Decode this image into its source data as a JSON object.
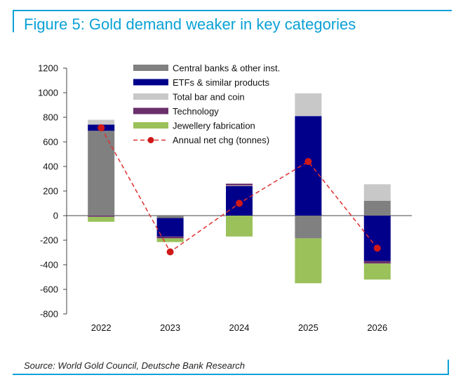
{
  "title": "Figure 5: Gold demand weaker in key categories",
  "source": "Source: World Gold Council, Deutsche Bank Research",
  "chart_data": {
    "type": "bar",
    "stacked": true,
    "categories": [
      "2022",
      "2023",
      "2024",
      "2025",
      "2026"
    ],
    "ylim": [
      -800,
      1200
    ],
    "yticks": [
      1200,
      1000,
      800,
      600,
      400,
      200,
      0,
      -200,
      -400,
      -600,
      -800
    ],
    "legend_position": "top-center",
    "grid": false,
    "series": [
      {
        "name": "Central banks & other inst.",
        "color": "#808080",
        "values": [
          690,
          -20,
          0,
          -185,
          120
        ]
      },
      {
        "name": "ETFs & similar products",
        "color": "#00008b",
        "values": [
          50,
          -150,
          240,
          810,
          -370
        ]
      },
      {
        "name": "Total bar and coin",
        "color": "#c8c8c8",
        "values": [
          40,
          0,
          5,
          185,
          135
        ]
      },
      {
        "name": "Technology",
        "color": "#6b2f6b",
        "values": [
          -10,
          -15,
          15,
          0,
          -20
        ]
      },
      {
        "name": "Jewellery fabrication",
        "color": "#9bc15a",
        "values": [
          -40,
          -30,
          -170,
          -365,
          -130
        ]
      }
    ],
    "line_series": {
      "name": "Annual net chg (tonnes)",
      "color": "#e03030",
      "values": [
        715,
        -295,
        100,
        440,
        -265
      ]
    }
  }
}
